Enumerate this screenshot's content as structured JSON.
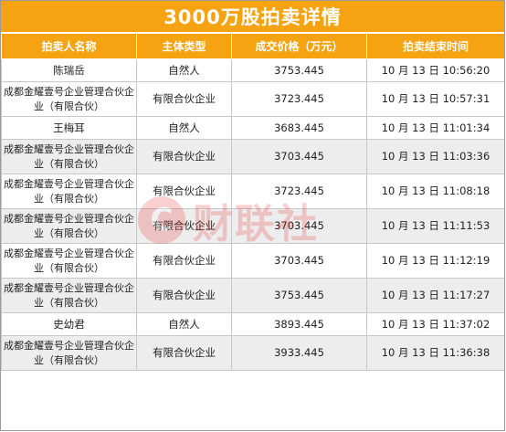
{
  "title": "3000万股拍卖详情",
  "headers": [
    "拍卖人名称",
    "主体类型",
    "成交价格（万元）",
    "拍卖结束时间"
  ],
  "rows": [
    {
      "name": "陈瑞岳",
      "type": "自然人",
      "price": "3753.445",
      "end_time": "10 月 13 日 10:56:20"
    },
    {
      "name": "成都金耀壹号企业管理合伙企业（有限合伙）",
      "type": "有限合伙企业",
      "price": "3723.445",
      "end_time": "10 月 13 日 10:57:31"
    },
    {
      "name": "王梅耳",
      "type": "自然人",
      "price": "3683.445",
      "end_time": "10 月 13 日 11:01:34"
    },
    {
      "name": "成都金耀壹号企业管理合伙企业（有限合伙）",
      "type": "有限合伙企业",
      "price": "3703.445",
      "end_time": "10 月 13 日 11:03:36"
    },
    {
      "name": "成都金耀壹号企业管理合伙企业（有限合伙）",
      "type": "有限合伙企业",
      "price": "3723.445",
      "end_time": "10 月 13 日 11:08:18"
    },
    {
      "name": "成都金耀壹号企业管理合伙企业（有限合伙）",
      "type": "有限合伙企业",
      "price": "3703.445",
      "end_time": "10 月 13 日 11:11:53"
    },
    {
      "name": "成都金耀壹号企业管理合伙企业（有限合伙）",
      "type": "有限合伙企业",
      "price": "3703.445",
      "end_time": "10 月 13 日 11:12:19"
    },
    {
      "name": "成都金耀壹号企业管理合伙企业（有限合伙）",
      "type": "有限合伙企业",
      "price": "3753.445",
      "end_time": "10 月 13 日 11:17:27"
    },
    {
      "name": "史幼君",
      "type": "自然人",
      "price": "3893.445",
      "end_time": "10 月 13 日 11:37:02"
    },
    {
      "name": "成都金耀壹号企业管理合伙企业（有限合伙）",
      "type": "有限合伙企业",
      "price": "3933.445",
      "end_time": "10 月 13 日 11:36:38"
    }
  ],
  "watermark": {
    "logo_glyph": "C",
    "text": "财联社"
  },
  "colors": {
    "header_bg": "#f5a310",
    "stripe": "#ededed",
    "watermark": "#e8302a"
  }
}
